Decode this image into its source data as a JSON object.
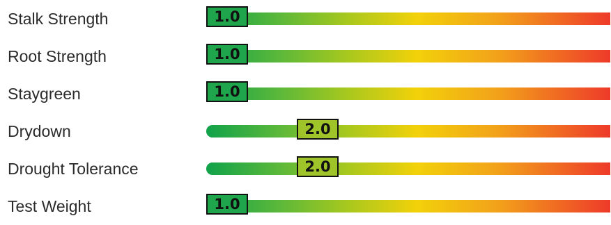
{
  "ratings": [
    {
      "label": "Stalk Strength",
      "value": "1.0",
      "level": 1.0,
      "marker_color": "#1fa54c"
    },
    {
      "label": "Root Strength",
      "value": "1.0",
      "level": 1.0,
      "marker_color": "#1fa54c"
    },
    {
      "label": "Staygreen",
      "value": "1.0",
      "level": 1.0,
      "marker_color": "#1fa54c"
    },
    {
      "label": "Drydown",
      "value": "2.0",
      "level": 2.0,
      "marker_color": "#9fc42a"
    },
    {
      "label": "Drought Tolerance",
      "value": "2.0",
      "level": 2.0,
      "marker_color": "#9fc42a"
    },
    {
      "label": "Test Weight",
      "value": "1.0",
      "level": 1.0,
      "marker_color": "#1fa54c"
    }
  ],
  "scale_colors": [
    "#10a24a",
    "#a8c81e",
    "#f2d10a",
    "#f2a21a",
    "#ee3a2a"
  ]
}
